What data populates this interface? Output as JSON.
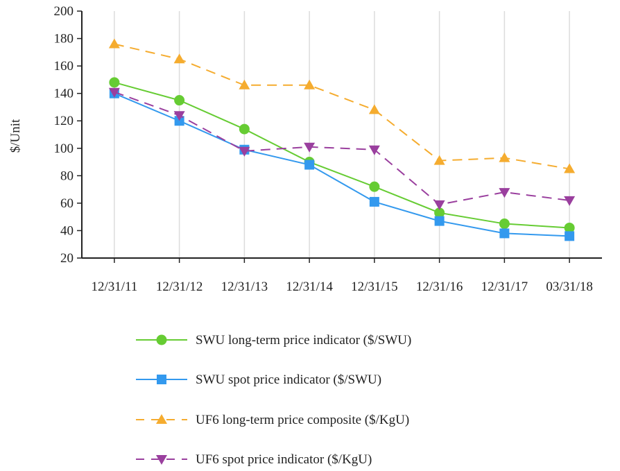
{
  "chart_data": {
    "type": "line",
    "title": "",
    "xlabel": "",
    "ylabel": "$/Unit",
    "categories": [
      "12/31/11",
      "12/31/12",
      "12/31/13",
      "12/31/14",
      "12/31/15",
      "12/31/16",
      "12/31/17",
      "03/31/18"
    ],
    "ylim": [
      20,
      200
    ],
    "yticks": [
      20,
      40,
      60,
      80,
      100,
      120,
      140,
      160,
      180,
      200
    ],
    "grid": "vertical",
    "legend_position": "bottom",
    "series": [
      {
        "name": "SWU long-term price indicator ($/SWU)",
        "values": [
          148,
          135,
          114,
          90,
          72,
          53,
          45,
          42
        ],
        "color": "#66cc33",
        "marker": "circle",
        "dash": "solid"
      },
      {
        "name": "SWU spot price indicator ($/SWU)",
        "values": [
          140,
          120,
          99,
          88,
          61,
          47,
          38,
          36
        ],
        "color": "#3399ee",
        "marker": "square",
        "dash": "solid"
      },
      {
        "name": "UF6 long-term price composite ($/KgU)",
        "values": [
          176,
          165,
          146,
          146,
          128,
          91,
          93,
          85
        ],
        "color": "#f5ac2f",
        "marker": "triangle-up",
        "dash": "dashed"
      },
      {
        "name": "UF6 spot price indicator ($/KgU)",
        "values": [
          141,
          124,
          98,
          101,
          99,
          59,
          68,
          62
        ],
        "color": "#9a3f9e",
        "marker": "triangle-down",
        "dash": "dashed"
      }
    ]
  }
}
